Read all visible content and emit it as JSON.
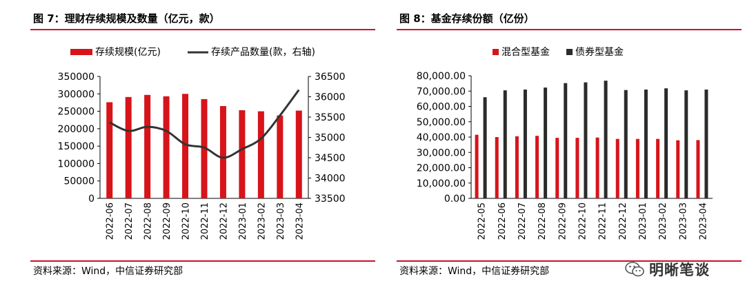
{
  "left": {
    "title": "图 7：理财存续规模及数量（亿元，款）",
    "source": "资料来源：Wind，中信证券研究部",
    "chart_data": {
      "type": "bar+line",
      "categories": [
        "2022-06",
        "2022-07",
        "2022-08",
        "2022-09",
        "2022-10",
        "2022-11",
        "2022-12",
        "2023-01",
        "2023-02",
        "2023-03",
        "2023-04"
      ],
      "series": [
        {
          "name": "存续规模(亿元)",
          "type": "bar",
          "axis": "left",
          "values": [
            276000,
            291000,
            297000,
            293000,
            300000,
            285000,
            265000,
            253000,
            250000,
            238000,
            252000
          ]
        },
        {
          "name": "存续产品数量(款，右轴)",
          "type": "line",
          "axis": "right",
          "values": [
            35370,
            35160,
            35260,
            35160,
            34830,
            34750,
            34500,
            34710,
            34970,
            35540,
            36170
          ]
        }
      ],
      "ylim_left": [
        0,
        350000
      ],
      "yticks_left": [
        "0",
        "50000",
        "100000",
        "150000",
        "200000",
        "250000",
        "300000",
        "350000"
      ],
      "ylim_right": [
        33500,
        36500
      ],
      "yticks_right": [
        "33500",
        "34000",
        "34500",
        "35000",
        "35500",
        "36000",
        "36500"
      ],
      "legend_position": "top",
      "grid": false,
      "colors": {
        "bar": "#d7141a",
        "line": "#333333"
      }
    }
  },
  "right": {
    "title": "图 8：基金存续份额（亿份）",
    "source": "资料来源：Wind，中信证券研究部",
    "chart_data": {
      "type": "bar",
      "categories": [
        "2022-05",
        "2022-06",
        "2022-07",
        "2022-08",
        "2022-09",
        "2022-10",
        "2022-11",
        "2022-12",
        "2023-01",
        "2023-02",
        "2023-03",
        "2023-04"
      ],
      "series": [
        {
          "name": "混合型基金",
          "values": [
            41500,
            40000,
            40500,
            40800,
            39500,
            39500,
            39700,
            38800,
            38800,
            38800,
            37900,
            38000
          ]
        },
        {
          "name": "债券型基金",
          "values": [
            66000,
            70500,
            71000,
            72300,
            75200,
            75700,
            76800,
            70700,
            71000,
            71800,
            70500,
            71000
          ]
        }
      ],
      "ylim": [
        0,
        80000
      ],
      "yticks": [
        "0.00",
        "10,000.00",
        "20,000.00",
        "30,000.00",
        "40,000.00",
        "50,000.00",
        "60,000.00",
        "70,000.00",
        "80,000.00"
      ],
      "legend_position": "top",
      "grid": false,
      "colors": {
        "混合型基金": "#d7141a",
        "债券型基金": "#2b2b2b"
      }
    }
  },
  "watermark": {
    "text": "明晰笔谈",
    "icon": "wechat-icon"
  }
}
